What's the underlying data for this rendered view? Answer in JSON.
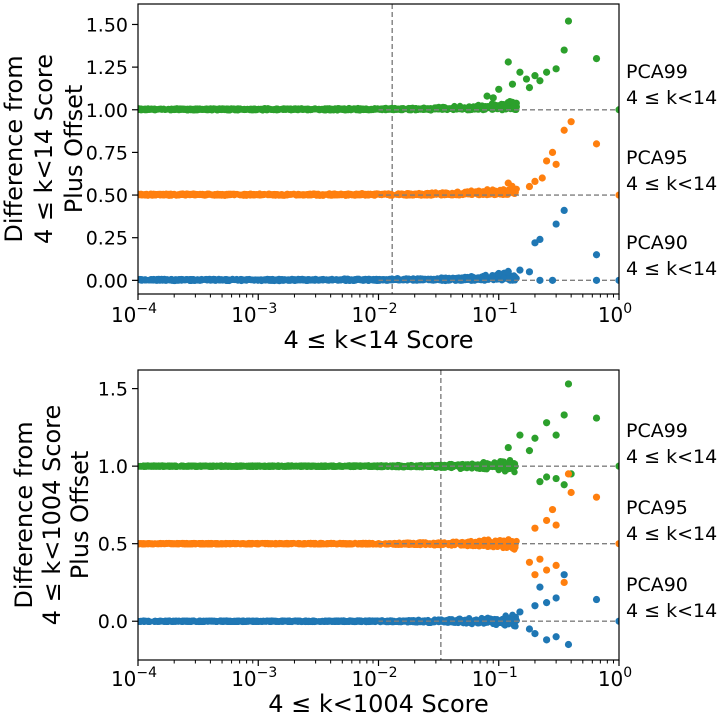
{
  "chart_data": [
    {
      "type": "scatter",
      "xscale": "log",
      "xlim": [
        0.0001,
        1
      ],
      "ylim": [
        -0.08,
        1.62
      ],
      "xticks": [
        0.0001,
        0.001,
        0.01,
        0.1,
        1
      ],
      "xtick_labels": [
        {
          "base": "10",
          "exp": "−4"
        },
        {
          "base": "10",
          "exp": "−3"
        },
        {
          "base": "10",
          "exp": "−2"
        },
        {
          "base": "10",
          "exp": "−1"
        },
        {
          "base": "10",
          "exp": "0"
        }
      ],
      "yticks": [
        0,
        0.25,
        0.5,
        0.75,
        1.0,
        1.25,
        1.5
      ],
      "ytick_labels": [
        "0.00",
        "0.25",
        "0.50",
        "0.75",
        "1.00",
        "1.25",
        "1.50"
      ],
      "xlabel": "4 ≤ k<14  Score",
      "ylabel": [
        "Difference from",
        "4 ≤ k<14 Score",
        "Plus Offset"
      ],
      "vline": 0.013,
      "series": [
        {
          "name": "PCA99",
          "sub": "4 ≤ k<14",
          "color": "#2ca02c",
          "offset": 1.0,
          "points": [
            [
              0.12,
              1.28
            ],
            [
              0.15,
              1.22
            ],
            [
              0.17,
              1.18
            ],
            [
              0.2,
              1.2
            ],
            [
              0.22,
              1.17
            ],
            [
              0.25,
              1.22
            ],
            [
              0.3,
              1.24
            ],
            [
              0.35,
              1.35
            ],
            [
              0.38,
              1.52
            ],
            [
              0.65,
              1.3
            ],
            [
              0.1,
              1.12
            ],
            [
              0.13,
              1.15
            ],
            [
              0.18,
              1.13
            ],
            [
              0.09,
              1.07
            ],
            [
              0.08,
              1.08
            ],
            [
              1.0,
              1.0
            ]
          ]
        },
        {
          "name": "PCA95",
          "sub": "4 ≤ k<14",
          "color": "#ff7f0e",
          "offset": 0.5,
          "points": [
            [
              0.2,
              0.58
            ],
            [
              0.23,
              0.6
            ],
            [
              0.25,
              0.7
            ],
            [
              0.28,
              0.75
            ],
            [
              0.3,
              0.68
            ],
            [
              0.35,
              0.88
            ],
            [
              0.4,
              0.93
            ],
            [
              0.65,
              0.8
            ],
            [
              0.18,
              0.55
            ],
            [
              0.12,
              0.57
            ],
            [
              1.0,
              0.5
            ]
          ]
        },
        {
          "name": "PCA90",
          "sub": "4 ≤ k<14",
          "color": "#1f77b4",
          "offset": 0.0,
          "points": [
            [
              0.2,
              0.22
            ],
            [
              0.22,
              0.24
            ],
            [
              0.3,
              0.33
            ],
            [
              0.35,
              0.41
            ],
            [
              0.65,
              0.15
            ],
            [
              0.15,
              0.06
            ],
            [
              0.18,
              0.05
            ],
            [
              0.12,
              0.05
            ],
            [
              0.1,
              0.04
            ],
            [
              0.22,
              0.0
            ],
            [
              0.28,
              0.0
            ],
            [
              0.65,
              0.0
            ],
            [
              1.0,
              0.0
            ]
          ]
        }
      ]
    },
    {
      "type": "scatter",
      "xscale": "log",
      "xlim": [
        0.0001,
        1
      ],
      "ylim": [
        -0.25,
        1.62
      ],
      "xticks": [
        0.0001,
        0.001,
        0.01,
        0.1,
        1
      ],
      "xtick_labels": [
        {
          "base": "10",
          "exp": "−4"
        },
        {
          "base": "10",
          "exp": "−3"
        },
        {
          "base": "10",
          "exp": "−2"
        },
        {
          "base": "10",
          "exp": "−1"
        },
        {
          "base": "10",
          "exp": "0"
        }
      ],
      "yticks": [
        0,
        0.5,
        1.0,
        1.5
      ],
      "ytick_labels": [
        "0.0",
        "0.5",
        "1.0",
        "1.5"
      ],
      "xlabel": "4 ≤ k<1004  Score",
      "ylabel": [
        "Difference from",
        "4 ≤ k<1004 Score",
        "Plus Offset"
      ],
      "vline": 0.033,
      "series": [
        {
          "name": "PCA99",
          "sub": "4 ≤ k<14",
          "color": "#2ca02c",
          "offset": 1.0,
          "points": [
            [
              0.15,
              1.2
            ],
            [
              0.2,
              1.18
            ],
            [
              0.25,
              1.28
            ],
            [
              0.3,
              1.2
            ],
            [
              0.35,
              1.33
            ],
            [
              0.38,
              1.53
            ],
            [
              0.65,
              1.31
            ],
            [
              0.12,
              1.12
            ],
            [
              0.18,
              1.1
            ],
            [
              0.3,
              0.92
            ],
            [
              0.35,
              0.88
            ],
            [
              0.4,
              0.95
            ],
            [
              0.22,
              0.9
            ],
            [
              0.25,
              0.93
            ],
            [
              1.0,
              1.0
            ]
          ]
        },
        {
          "name": "PCA95",
          "sub": "4 ≤ k<14",
          "color": "#ff7f0e",
          "offset": 0.5,
          "points": [
            [
              0.2,
              0.6
            ],
            [
              0.25,
              0.65
            ],
            [
              0.28,
              0.72
            ],
            [
              0.3,
              0.62
            ],
            [
              0.38,
              0.95
            ],
            [
              0.4,
              0.83
            ],
            [
              0.65,
              0.8
            ],
            [
              0.22,
              0.4
            ],
            [
              0.25,
              0.33
            ],
            [
              0.3,
              0.36
            ],
            [
              0.35,
              0.25
            ],
            [
              0.2,
              0.3
            ],
            [
              0.18,
              0.38
            ],
            [
              1.0,
              0.5
            ]
          ]
        },
        {
          "name": "PCA90",
          "sub": "4 ≤ k<14",
          "color": "#1f77b4",
          "offset": 0.0,
          "points": [
            [
              0.15,
              0.06
            ],
            [
              0.2,
              0.1
            ],
            [
              0.22,
              0.22
            ],
            [
              0.25,
              0.12
            ],
            [
              0.3,
              0.15
            ],
            [
              0.35,
              0.3
            ],
            [
              0.65,
              0.14
            ],
            [
              0.2,
              -0.08
            ],
            [
              0.25,
              -0.12
            ],
            [
              0.3,
              -0.1
            ],
            [
              0.38,
              -0.15
            ],
            [
              0.18,
              -0.05
            ],
            [
              1.0,
              0.0
            ]
          ]
        }
      ]
    }
  ]
}
